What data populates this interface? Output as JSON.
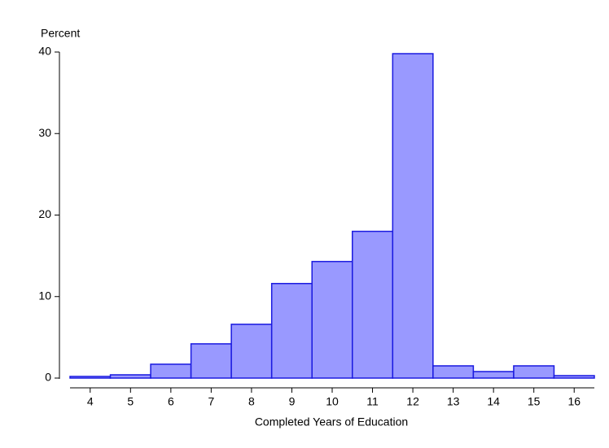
{
  "chart_data": {
    "type": "histogram",
    "y_label": "Percent",
    "x_label": "Completed Years of Education",
    "bins": [
      3.5,
      4.5,
      5.5,
      6.5,
      7.5,
      8.5,
      9.5,
      10.5,
      11.5,
      12.5,
      13.5,
      14.5,
      15.5,
      16.5
    ],
    "values": [
      0.2,
      0.4,
      1.7,
      4.2,
      6.6,
      11.6,
      14.3,
      18.0,
      39.8,
      1.5,
      0.8,
      1.5,
      0.3
    ],
    "color": "#9999ff",
    "edge_color": "#1a1ae0",
    "xlim": [
      3.5,
      16.5
    ],
    "xticks": [
      4,
      5,
      6,
      7,
      8,
      9,
      10,
      11,
      12,
      13,
      14,
      15,
      16
    ],
    "ylim": [
      0,
      40
    ],
    "yticks": [
      0,
      10,
      20,
      30,
      40
    ],
    "grid": false
  }
}
